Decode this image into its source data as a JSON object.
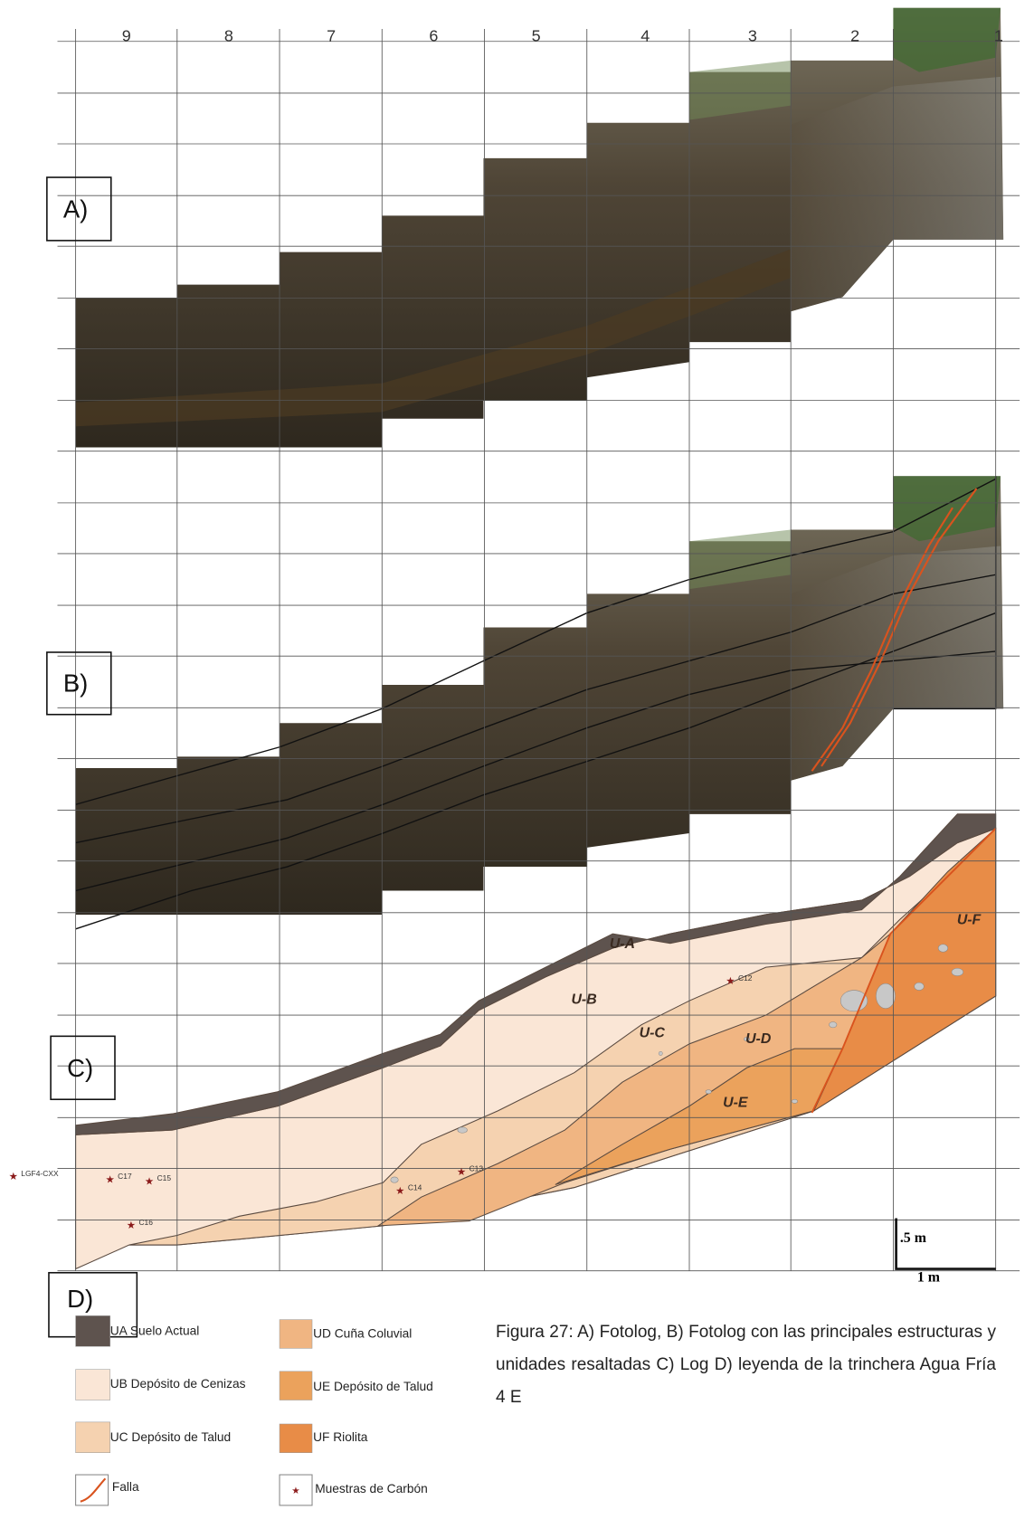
{
  "columns": [
    "9",
    "8",
    "7",
    "6",
    "5",
    "4",
    "3",
    "2",
    "1"
  ],
  "panels": {
    "a": "A)",
    "b": "B)",
    "c": "C)",
    "d": "D)"
  },
  "units": [
    "U-A",
    "U-B",
    "U-C",
    "U-D",
    "U-E",
    "U-F"
  ],
  "samples": [
    "C12",
    "C13",
    "C14",
    "C15",
    "C16",
    "C17",
    "LGF4-CXX"
  ],
  "scale": {
    "vertical": ".5 m",
    "horizontal": "1 m"
  },
  "legend": [
    "UA Suelo Actual",
    "UB Depósito de Cenizas",
    "UC Depósito de Talud",
    "Falla",
    "UD Cuña Coluvial",
    "UE Depósito de Talud",
    "UF Riolita",
    "Muestras de Carbón"
  ],
  "caption": "Figura 27: A) Fotolog, B) Fotolog con las principales estructuras y unidades resaltadas C) Log D) leyenda de la trinchera Agua Fría 4 E"
}
